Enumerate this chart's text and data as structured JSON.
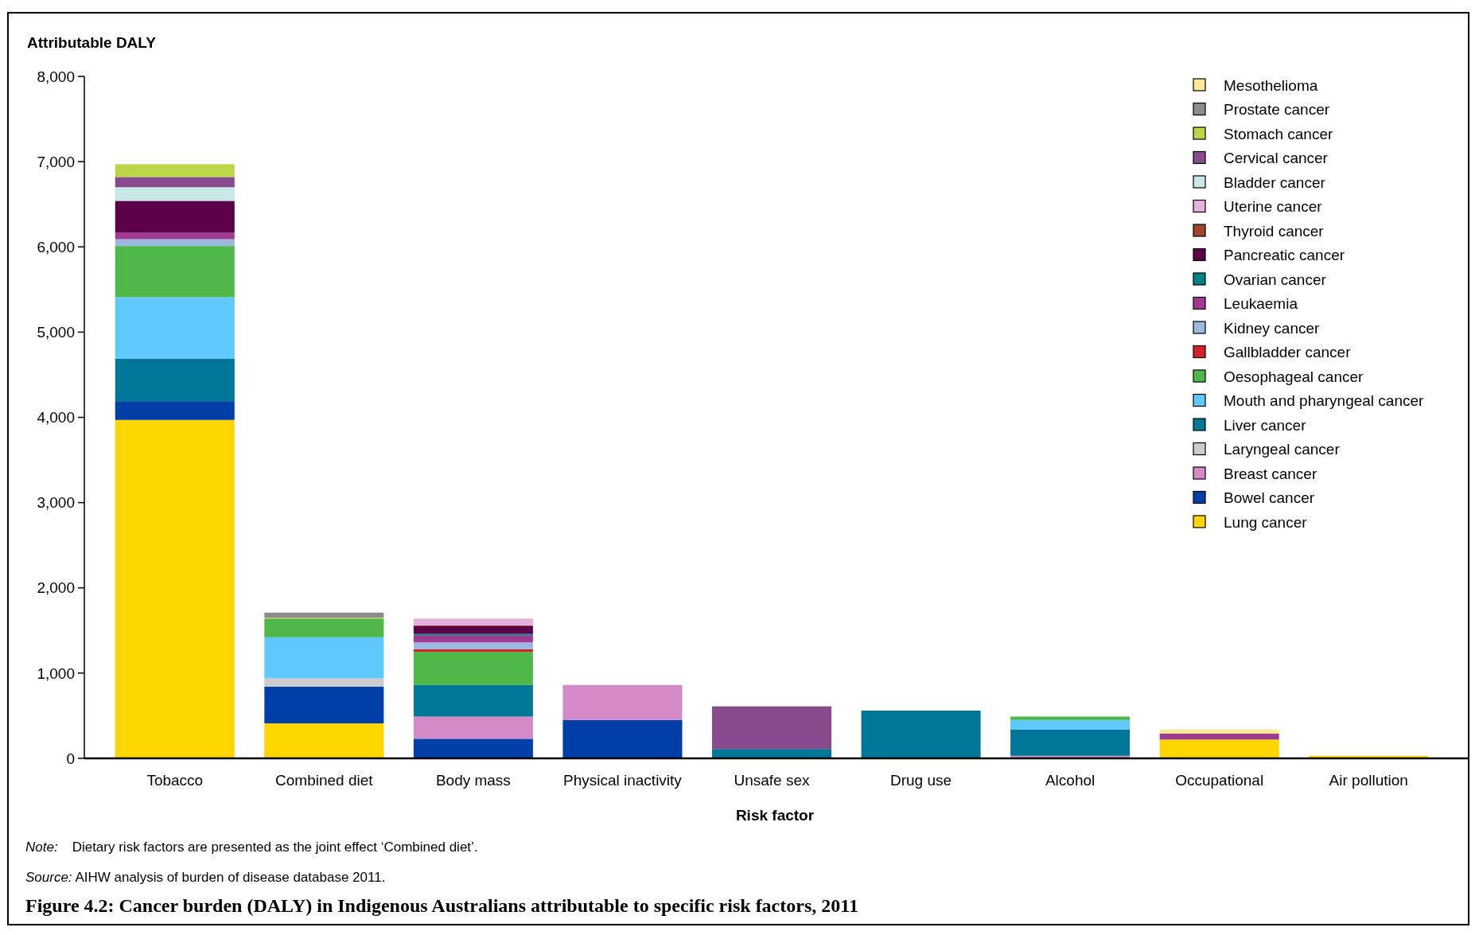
{
  "chart_data": {
    "type": "bar",
    "stacked": true,
    "title": "Figure 4.2: Cancer burden (DALY) in Indigenous Australians attributable to specific risk factors, 2011",
    "xlabel": "Risk factor",
    "ylabel": "Attributable DALY",
    "categories": [
      "Tobacco",
      "Combined diet",
      "Body mass",
      "Physical inactivity",
      "Unsafe sex",
      "Drug use",
      "Alcohol",
      "Occupational",
      "Air pollution"
    ],
    "ylim": [
      0,
      8000
    ],
    "yticks": [
      {
        "value": 0,
        "label": "0"
      },
      {
        "value": 1000,
        "label": "1,000"
      },
      {
        "value": 2000,
        "label": "2,000"
      },
      {
        "value": 3000,
        "label": "3,000"
      },
      {
        "value": 4000,
        "label": "4,000"
      },
      {
        "value": 5000,
        "label": "5,000"
      },
      {
        "value": 6000,
        "label": "6,000"
      },
      {
        "value": 7000,
        "label": "7,000"
      },
      {
        "value": 8000,
        "label": "8,000"
      }
    ],
    "grid": false,
    "legend": "top right",
    "annotations": [
      "Note:  Dietary risk factors are presented as the joint effect ‘Combined diet’.",
      "Source: AIHW analysis of burden of disease database 2011."
    ],
    "series": [
      {
        "name": "Lung cancer",
        "color": "#ffd500",
        "values": [
          3970,
          410,
          null,
          null,
          null,
          null,
          null,
          220,
          30
        ]
      },
      {
        "name": "Bowel cancer",
        "color": "#003ea8",
        "values": [
          220,
          430,
          230,
          450,
          null,
          null,
          null,
          null,
          null
        ]
      },
      {
        "name": "Breast cancer",
        "color": "#d38ac7",
        "values": [
          null,
          null,
          260,
          410,
          null,
          null,
          30,
          null,
          null
        ]
      },
      {
        "name": "Laryngeal cancer",
        "color": "#cccccc",
        "values": [
          null,
          100,
          null,
          null,
          null,
          null,
          null,
          null,
          null
        ]
      },
      {
        "name": "Liver cancer",
        "color": "#007799",
        "values": [
          500,
          null,
          370,
          null,
          110,
          560,
          310,
          null,
          null
        ]
      },
      {
        "name": "Mouth and pharyngeal cancer",
        "color": "#5fc8ff",
        "values": [
          720,
          480,
          null,
          null,
          null,
          null,
          110,
          null,
          null
        ]
      },
      {
        "name": "Oesophageal cancer",
        "color": "#50b848",
        "values": [
          600,
          220,
          390,
          null,
          null,
          null,
          40,
          null,
          null
        ]
      },
      {
        "name": "Gallbladder cancer",
        "color": "#d42027",
        "values": [
          null,
          null,
          30,
          null,
          null,
          null,
          null,
          null,
          null
        ]
      },
      {
        "name": "Kidney cancer",
        "color": "#9bb8e0",
        "values": [
          80,
          null,
          80,
          null,
          null,
          null,
          null,
          null,
          null
        ]
      },
      {
        "name": "Leukaemia",
        "color": "#a03a90",
        "values": [
          80,
          null,
          80,
          null,
          null,
          null,
          null,
          70,
          null
        ]
      },
      {
        "name": "Ovarian cancer",
        "color": "#008080",
        "values": [
          null,
          null,
          20,
          null,
          null,
          null,
          null,
          null,
          null
        ]
      },
      {
        "name": "Pancreatic cancer",
        "color": "#5c004a",
        "values": [
          370,
          null,
          90,
          null,
          null,
          null,
          null,
          null,
          null
        ]
      },
      {
        "name": "Thyroid cancer",
        "color": "#a0442a",
        "values": [
          null,
          null,
          10,
          null,
          null,
          null,
          null,
          null,
          null
        ]
      },
      {
        "name": "Uterine cancer",
        "color": "#e6b0e0",
        "values": [
          null,
          null,
          80,
          null,
          null,
          null,
          null,
          null,
          null
        ]
      },
      {
        "name": "Bladder cancer",
        "color": "#c8e8e8",
        "values": [
          160,
          null,
          null,
          null,
          null,
          null,
          null,
          null,
          null
        ]
      },
      {
        "name": "Cervical cancer",
        "color": "#8a4a8e",
        "values": [
          120,
          null,
          null,
          null,
          500,
          null,
          null,
          null,
          null
        ]
      },
      {
        "name": "Stomach cancer",
        "color": "#bcd647",
        "values": [
          150,
          10,
          null,
          null,
          null,
          null,
          null,
          null,
          null
        ]
      },
      {
        "name": "Prostate cancer",
        "color": "#8c8c8c",
        "values": [
          null,
          60,
          null,
          null,
          null,
          null,
          null,
          null,
          null
        ]
      },
      {
        "name": "Mesothelioma",
        "color": "#fbe99a",
        "values": [
          null,
          null,
          null,
          null,
          null,
          null,
          null,
          50,
          null
        ]
      }
    ]
  }
}
